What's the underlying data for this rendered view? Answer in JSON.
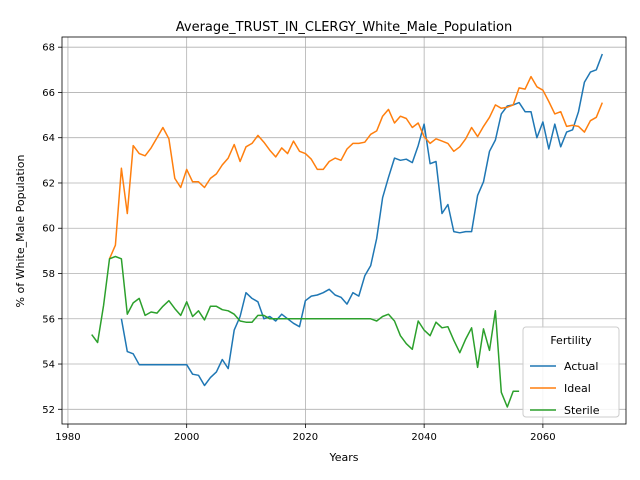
{
  "chart_data": {
    "type": "line",
    "title": "Average_TRUST_IN_CLERGY_White_Male_Population",
    "xlabel": "Years",
    "ylabel": "% of White_Male Population",
    "xlim": [
      1979,
      2074
    ],
    "ylim": [
      51.35,
      68.45
    ],
    "x_ticks": [
      1980,
      2000,
      2020,
      2040,
      2060
    ],
    "y_ticks": [
      52,
      54,
      56,
      58,
      60,
      62,
      64,
      66,
      68
    ],
    "grid": true,
    "legend": {
      "title": "Fertility",
      "position": "bottom-right"
    },
    "series": [
      {
        "name": "Actual",
        "color": "#1f77b4",
        "x": [
          1989,
          1990,
          1991,
          1992,
          1993,
          1994,
          1995,
          1996,
          1997,
          1998,
          1999,
          2000,
          2001,
          2002,
          2003,
          2004,
          2005,
          2006,
          2007,
          2008,
          2009,
          2010,
          2011,
          2012,
          2013,
          2014,
          2015,
          2016,
          2017,
          2018,
          2019,
          2020,
          2021,
          2022,
          2023,
          2024,
          2025,
          2026,
          2027,
          2028,
          2029,
          2030,
          2031,
          2032,
          2033,
          2034,
          2035,
          2036,
          2037,
          2038,
          2039,
          2040,
          2041,
          2042,
          2043,
          2044,
          2045,
          2046,
          2047,
          2048,
          2049,
          2050,
          2051,
          2052,
          2053,
          2054,
          2055,
          2056,
          2057,
          2058,
          2059,
          2060,
          2061,
          2062,
          2063,
          2064,
          2065,
          2066,
          2067,
          2068,
          2069,
          2070
        ],
        "values": [
          56.0,
          54.55,
          54.45,
          53.97,
          53.97,
          53.97,
          53.97,
          53.97,
          53.97,
          53.97,
          53.97,
          53.97,
          53.55,
          53.5,
          53.05,
          53.4,
          53.65,
          54.2,
          53.8,
          55.5,
          56.1,
          57.15,
          56.9,
          56.75,
          56.0,
          56.1,
          55.9,
          56.2,
          56.0,
          55.8,
          55.65,
          56.8,
          57.0,
          57.05,
          57.15,
          57.3,
          57.05,
          56.95,
          56.65,
          57.15,
          57.0,
          57.9,
          58.35,
          59.55,
          61.35,
          62.25,
          63.1,
          63.0,
          63.05,
          62.9,
          63.65,
          64.6,
          62.85,
          62.95,
          60.65,
          61.05,
          59.85,
          59.8,
          59.85,
          59.85,
          61.45,
          62.05,
          63.4,
          63.9,
          65.05,
          65.4,
          65.45,
          65.55,
          65.15,
          65.15,
          64.0,
          64.7,
          63.5,
          64.6,
          63.6,
          64.25,
          64.35,
          65.15,
          66.45,
          66.9,
          67.0,
          67.7
        ]
      },
      {
        "name": "Ideal",
        "color": "#ff7f0e",
        "x": [
          1987,
          1988,
          1989,
          1990,
          1991,
          1992,
          1993,
          1994,
          1995,
          1996,
          1997,
          1998,
          1999,
          2000,
          2001,
          2002,
          2003,
          2004,
          2005,
          2006,
          2007,
          2008,
          2009,
          2010,
          2011,
          2012,
          2013,
          2014,
          2015,
          2016,
          2017,
          2018,
          2019,
          2020,
          2021,
          2022,
          2023,
          2024,
          2025,
          2026,
          2027,
          2028,
          2029,
          2030,
          2031,
          2032,
          2033,
          2034,
          2035,
          2036,
          2037,
          2038,
          2039,
          2040,
          2041,
          2042,
          2043,
          2044,
          2045,
          2046,
          2047,
          2048,
          2049,
          2050,
          2051,
          2052,
          2053,
          2054,
          2055,
          2056,
          2057,
          2058,
          2059,
          2060,
          2061,
          2062,
          2063,
          2064,
          2065,
          2066,
          2067,
          2068,
          2069,
          2070
        ],
        "values": [
          58.65,
          59.25,
          62.65,
          60.65,
          63.65,
          63.3,
          63.2,
          63.55,
          64.0,
          64.45,
          63.95,
          62.2,
          61.8,
          62.6,
          62.05,
          62.05,
          61.8,
          62.2,
          62.4,
          62.8,
          63.1,
          63.7,
          62.95,
          63.6,
          63.75,
          64.1,
          63.8,
          63.45,
          63.15,
          63.55,
          63.3,
          63.85,
          63.4,
          63.3,
          63.05,
          62.6,
          62.6,
          62.95,
          63.1,
          63.0,
          63.5,
          63.75,
          63.75,
          63.8,
          64.15,
          64.3,
          64.95,
          65.25,
          64.65,
          64.95,
          64.85,
          64.45,
          64.65,
          64.05,
          63.75,
          63.95,
          63.85,
          63.75,
          63.4,
          63.6,
          63.95,
          64.45,
          64.05,
          64.5,
          64.9,
          65.45,
          65.3,
          65.35,
          65.45,
          66.2,
          66.15,
          66.7,
          66.25,
          66.1,
          65.6,
          65.05,
          65.15,
          64.5,
          64.55,
          64.5,
          64.25,
          64.75,
          64.9,
          65.55
        ]
      },
      {
        "name": "Sterile",
        "color": "#2ca02c",
        "x": [
          1984,
          1985,
          1986,
          1987,
          1988,
          1989,
          1990,
          1991,
          1992,
          1993,
          1994,
          1995,
          1996,
          1997,
          1998,
          1999,
          2000,
          2001,
          2002,
          2003,
          2004,
          2005,
          2006,
          2007,
          2008,
          2009,
          2010,
          2011,
          2012,
          2013,
          2014,
          2015,
          2016,
          2017,
          2018,
          2019,
          2020,
          2021,
          2022,
          2023,
          2024,
          2025,
          2026,
          2027,
          2028,
          2029,
          2030,
          2031,
          2032,
          2033,
          2034,
          2035,
          2036,
          2037,
          2038,
          2039,
          2040,
          2041,
          2042,
          2043,
          2044,
          2045,
          2046,
          2047,
          2048,
          2049,
          2050,
          2051,
          2052,
          2053,
          2054,
          2055,
          2056
        ],
        "values": [
          55.3,
          54.95,
          56.6,
          58.65,
          58.75,
          58.65,
          56.2,
          56.7,
          56.9,
          56.15,
          56.3,
          56.25,
          56.55,
          56.8,
          56.45,
          56.15,
          56.75,
          56.1,
          56.35,
          55.95,
          56.55,
          56.55,
          56.4,
          56.35,
          56.2,
          55.9,
          55.85,
          55.85,
          56.15,
          56.15,
          56.0,
          56.0,
          56.0,
          56.0,
          56.0,
          56.0,
          56.0,
          56.0,
          56.0,
          56.0,
          56.0,
          56.0,
          56.0,
          56.0,
          56.0,
          56.0,
          56.0,
          56.0,
          55.9,
          56.1,
          56.2,
          55.9,
          55.25,
          54.9,
          54.65,
          55.9,
          55.5,
          55.25,
          55.85,
          55.6,
          55.65,
          55.05,
          54.5,
          55.1,
          55.6,
          53.85,
          55.55,
          54.6,
          56.35,
          52.75,
          52.1,
          52.8,
          52.8
        ]
      }
    ]
  }
}
